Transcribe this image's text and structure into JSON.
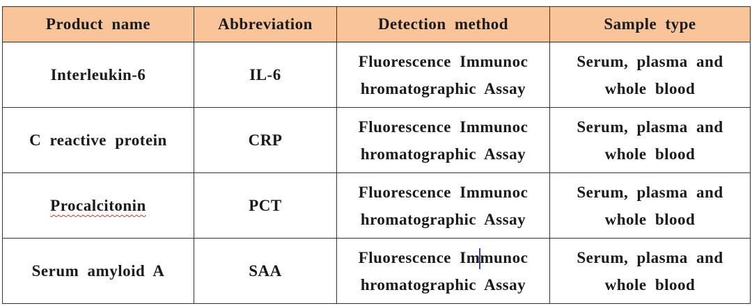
{
  "table": {
    "headers": [
      "Product name",
      "Abbreviation",
      "Detection method",
      "Sample type"
    ],
    "rows": [
      {
        "product": "Interleukin-6",
        "abbreviation": "IL-6",
        "method_line1": "Fluorescence Immunoc",
        "method_line2": "hromatographic Assay",
        "sample_line1": "Serum, plasma and",
        "sample_line2": "whole blood"
      },
      {
        "product": "C reactive protein",
        "abbreviation": "CRP",
        "method_line1": "Fluorescence Immunoc",
        "method_line2": "hromatographic Assay",
        "sample_line1": "Serum, plasma and",
        "sample_line2": "whole blood"
      },
      {
        "product": "Procalcitonin",
        "abbreviation": "PCT",
        "method_line1": "Fluorescence Immunoc",
        "method_line2": "hromatographic Assay",
        "sample_line1": "Serum, plasma and",
        "sample_line2": "whole blood"
      },
      {
        "product": "Serum amyloid A",
        "abbreviation": "SAA",
        "method_line1_a": "Fluorescence Im",
        "method_line1_b": "munoc",
        "method_line2": "hromatographic Assay",
        "sample_line1": "Serum, plasma and",
        "sample_line2": "whole blood"
      }
    ]
  },
  "colors": {
    "header_bg": "#f9c49a",
    "border": "#333333",
    "spellcheck_underline": "#e03030"
  }
}
